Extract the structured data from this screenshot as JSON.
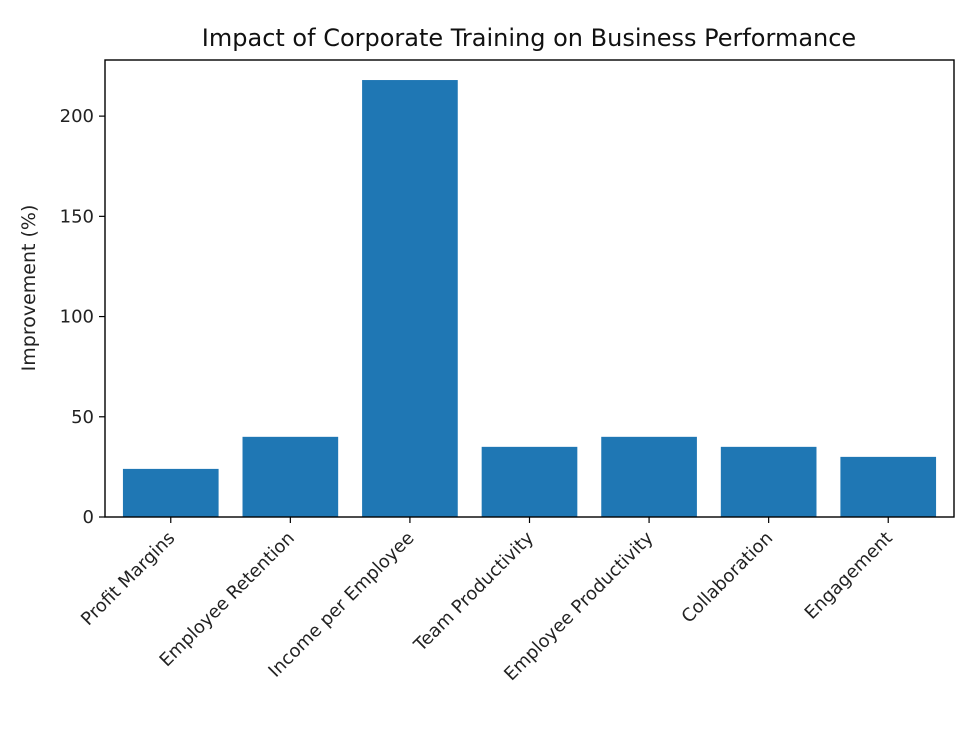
{
  "chart_data": {
    "type": "bar",
    "title": "Impact of Corporate Training on Business Performance",
    "xlabel": "",
    "ylabel": "Improvement (%)",
    "categories": [
      "Profit Margins",
      "Employee Retention",
      "Income per Employee",
      "Team Productivity",
      "Employee Productivity",
      "Collaboration",
      "Engagement"
    ],
    "values": [
      24,
      40,
      218,
      35,
      40,
      35,
      30
    ],
    "ylim": [
      0,
      228
    ],
    "yticks": [
      0,
      50,
      100,
      150,
      200
    ],
    "bar_color": "#1f77b4",
    "grid": false,
    "legend": "none"
  }
}
